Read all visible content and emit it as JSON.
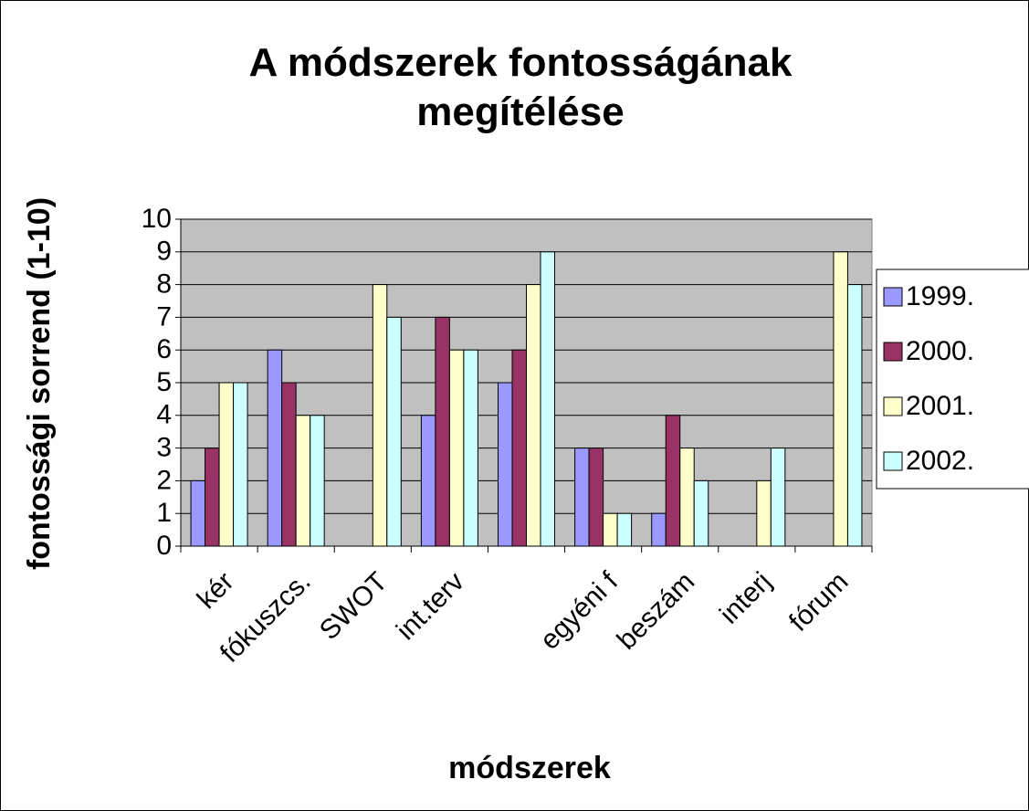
{
  "chart_data": {
    "type": "bar",
    "title": "A módszerek fontosságának megítélése",
    "xlabel": "módszerek",
    "ylabel": "fontossági sorrend (1-10)",
    "categories": [
      "kér",
      "fókuszcs.",
      "SWOT",
      "int.terv",
      null,
      "egyéni f",
      "beszám",
      "interj",
      "fórum"
    ],
    "series": [
      {
        "name": "1999.",
        "color": "#9999ff",
        "values": [
          2,
          6,
          null,
          4,
          5,
          3,
          1,
          null,
          null
        ]
      },
      {
        "name": "2000.",
        "color": "#993366",
        "values": [
          3,
          5,
          null,
          7,
          6,
          3,
          4,
          null,
          null
        ]
      },
      {
        "name": "2001.",
        "color": "#ffffcc",
        "values": [
          5,
          4,
          8,
          6,
          8,
          1,
          3,
          2,
          9
        ]
      },
      {
        "name": "2002.",
        "color": "#ccffff",
        "values": [
          5,
          4,
          7,
          6,
          9,
          1,
          2,
          3,
          8
        ]
      }
    ],
    "ylim": [
      0,
      10
    ],
    "yticks": [
      0,
      1,
      2,
      3,
      4,
      5,
      6,
      7,
      8,
      9,
      10
    ],
    "grid": true,
    "legend": "right",
    "plot_background": "#c0c0c0"
  }
}
